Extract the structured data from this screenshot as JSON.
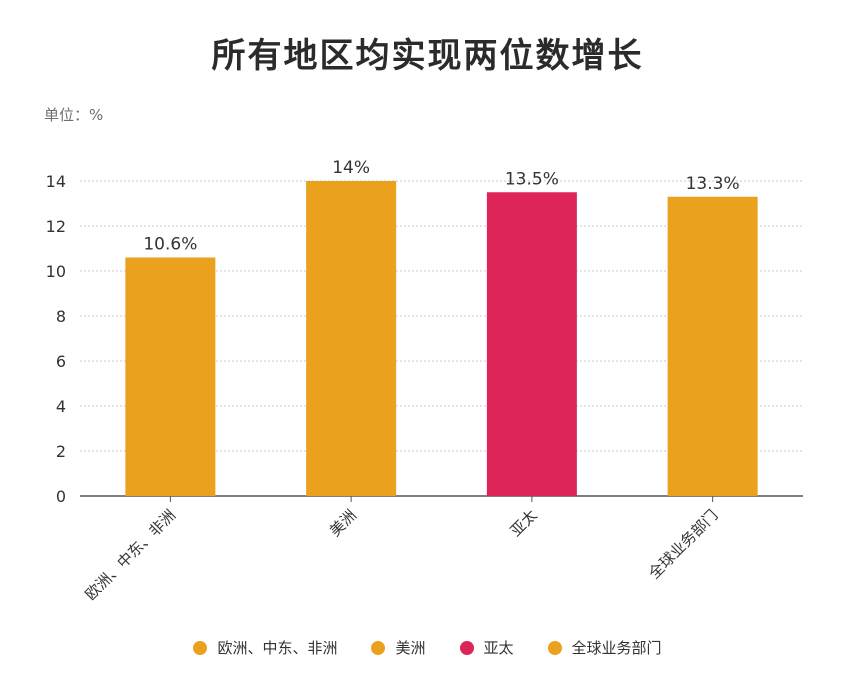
{
  "title": "所有地区均实现两位数增长",
  "unit_label": "单位：%",
  "colors": {
    "orange": "#E9A11E",
    "crimson": "#DD2557",
    "axis": "#555555",
    "grid": "#c8c8c8"
  },
  "chart_data": {
    "type": "bar",
    "categories": [
      "欧洲、中东、非洲",
      "美洲",
      "亚太",
      "全球业务部门"
    ],
    "values": [
      10.6,
      14,
      13.5,
      13.3
    ],
    "value_labels": [
      "10.6%",
      "14%",
      "13.5%",
      "13.3%"
    ],
    "bar_colors": [
      "#E9A11E",
      "#E9A11E",
      "#DD2557",
      "#E9A11E"
    ],
    "ylim": [
      0,
      14
    ],
    "yticks": [
      0,
      2,
      4,
      6,
      8,
      10,
      12,
      14
    ],
    "grid": true,
    "legend_position": "bottom",
    "legend": [
      {
        "label": "欧洲、中东、非洲",
        "color": "#E9A11E"
      },
      {
        "label": "美洲",
        "color": "#E9A11E"
      },
      {
        "label": "亚太",
        "color": "#DD2557"
      },
      {
        "label": "全球业务部门",
        "color": "#E9A11E"
      }
    ]
  }
}
